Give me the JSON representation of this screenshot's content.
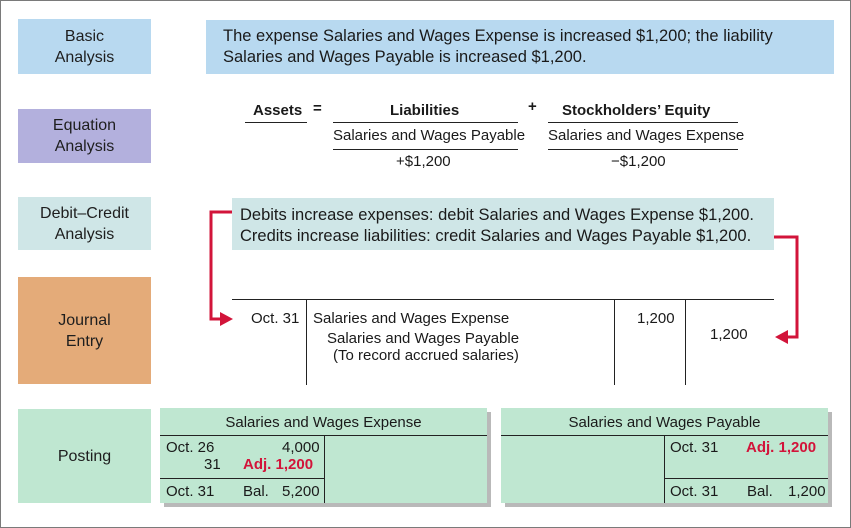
{
  "steps": {
    "basic": "Basic\nAnalysis",
    "equation": "Equation\nAnalysis",
    "debit_credit": "Debit–Credit\nAnalysis",
    "journal": "Journal\nEntry",
    "posting": "Posting"
  },
  "basic_analysis": {
    "line1": "The expense Salaries and Wages Expense is increased $1,200; the liability",
    "line2": "Salaries and Wages Payable is increased $1,200."
  },
  "equation": {
    "assets": "Assets",
    "equals": "=",
    "liabilities": "Liabilities",
    "plus": "+",
    "equity": "Stockholders’ Equity",
    "liab_account": "Salaries and Wages Payable",
    "equity_account": "Salaries and Wages Expense",
    "liab_change": "+$1,200",
    "equity_change": "−$1,200"
  },
  "debit_credit": {
    "line1": "Debits increase expenses: debit Salaries and Wages Expense $1,200.",
    "line2": "Credits increase liabilities: credit Salaries and Wages Payable $1,200."
  },
  "journal": {
    "date": "Oct. 31",
    "debit_account": "Salaries and Wages Expense",
    "credit_account": "Salaries and Wages Payable",
    "explanation": "(To record accrued salaries)",
    "debit_amount": "1,200",
    "credit_amount": "1,200"
  },
  "posting": {
    "expense": {
      "title": "Salaries and Wages Expense",
      "row1_date": "Oct. 26",
      "row1_amount": "4,000",
      "row2_date": "31",
      "row2_amount": "Adj. 1,200",
      "bal_date": "Oct. 31",
      "bal_label": "Bal.",
      "bal_amount": "5,200"
    },
    "payable": {
      "title": "Salaries and Wages Payable",
      "row1_date": "Oct. 31",
      "row1_amount": "Adj. 1,200",
      "bal_date": "Oct. 31",
      "bal_label": "Bal.",
      "bal_amount": "1,200"
    }
  },
  "colors": {
    "red_accent": "#d2143a",
    "basic_blue": "#b8d9f0",
    "equation_purple": "#b3b0dd",
    "dc_teal": "#cfe6e7",
    "journal_orange": "#e4ab79",
    "posting_green": "#bfe7d1"
  }
}
